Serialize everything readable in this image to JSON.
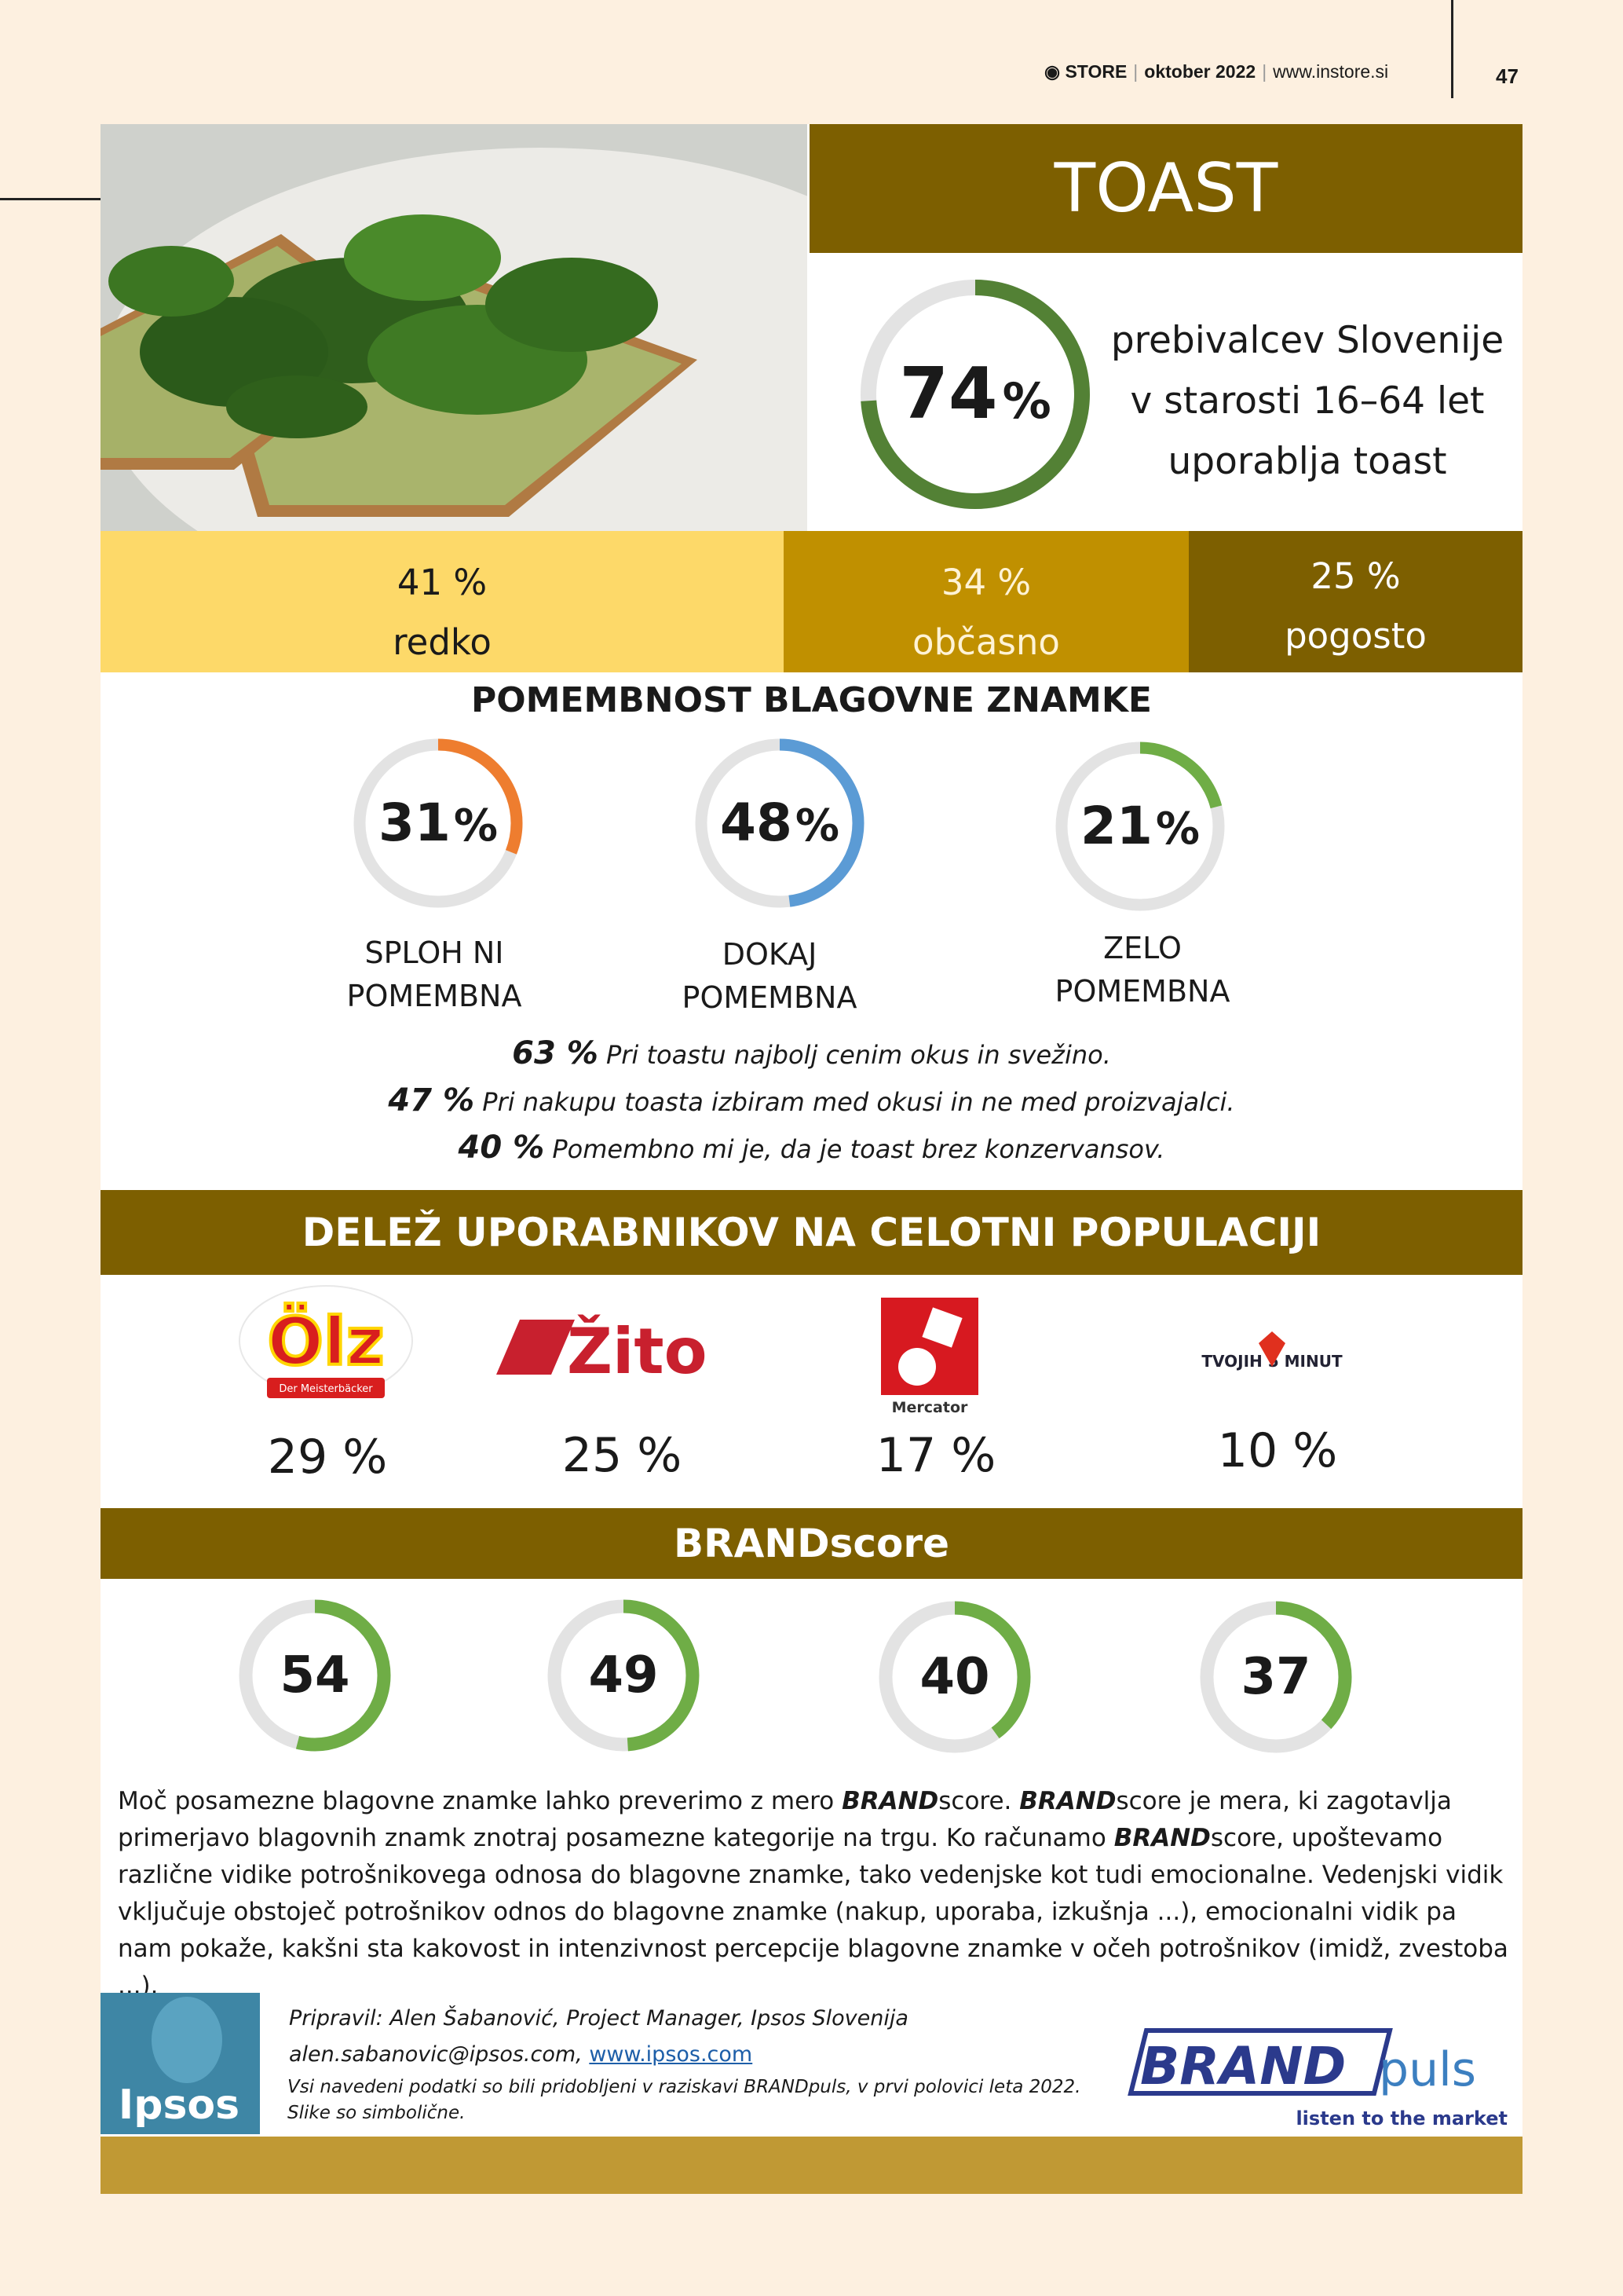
{
  "header": {
    "magazine": "STORE",
    "issue": "oktober 2022",
    "website": "www.instore.si",
    "page_number": "47"
  },
  "title": "TOAST",
  "usage": {
    "percent": "74",
    "unit": "%",
    "value": 74,
    "lines": [
      "prebivalcev Slovenije",
      "v starosti 16–64 let",
      "uporablja toast"
    ]
  },
  "frequency": [
    {
      "value": "41 %",
      "label": "redko"
    },
    {
      "value": "34 %",
      "label": "občasno"
    },
    {
      "value": "25 %",
      "label": "pogosto"
    }
  ],
  "importance": {
    "heading": "POMEMBNOST BLAGOVNE ZNAMKE",
    "items": [
      {
        "percent": "31",
        "unit": "%",
        "value": 31,
        "label_1": "SPLOH NI",
        "label_2": "POMEMBNA",
        "color": "#ee7d2f"
      },
      {
        "percent": "48",
        "unit": "%",
        "value": 48,
        "label_1": "DOKAJ",
        "label_2": "POMEMBNA",
        "color": "#5b9bd5"
      },
      {
        "percent": "21",
        "unit": "%",
        "value": 21,
        "label_1": "ZELO",
        "label_2": "POMEMBNA",
        "color": "#6fad46"
      }
    ]
  },
  "statements": [
    {
      "percent": "63 %",
      "text": "Pri toastu najbolj cenim okus in svežino."
    },
    {
      "percent": "47 %",
      "text": "Pri nakupu toasta izbiram med okusi in ne med proizvajalci."
    },
    {
      "percent": "40 %",
      "text": "Pomembno mi je, da je toast brez konzervansov."
    }
  ],
  "share": {
    "heading": "DELEŽ UPORABNIKOV NA CELOTNI POPULACIJI",
    "brands": [
      {
        "logo_text": "Ölz",
        "logo_sub": "Der Meisterbäcker",
        "value": "29 %"
      },
      {
        "logo_text": "Žito",
        "value": "25 %"
      },
      {
        "logo_text": "Mercator",
        "value": "17 %"
      },
      {
        "logo_text": "TVOJIH 5 MINUT",
        "value": "10 %"
      }
    ]
  },
  "brandscore": {
    "heading": "BRANDscore",
    "scores": [
      {
        "label": "54",
        "value": 54
      },
      {
        "label": "49",
        "value": 49
      },
      {
        "label": "40",
        "value": 40
      },
      {
        "label": "37",
        "value": 37
      }
    ],
    "ring_color": "#6fad46"
  },
  "description": {
    "p1": "Moč posamezne blagovne znamke lahko preverimo z mero ",
    "b1": "BRAND",
    "p2": "score. ",
    "b2": "BRAND",
    "p3": "score je mera, ki zagotavlja primerjavo blagovnih znamk znotraj posamezne kategorije na trgu. Ko računamo ",
    "b3": "BRAND",
    "p4": "score, upoštevamo različne vidike potrošnikovega odnosa do blagovne znamke, tako vedenjske kot tudi emocionalne. Vedenjski vidik vključuje obstoječ potrošnikov odnos do blagovne znamke (nakup, uporaba, izkušnja ...), emocionalni vidik pa nam pokaže, kakšni sta kakovost in intenzivnost percepcije blagovne znamke v očeh potrošnikov (imidž, zvestoba ...)."
  },
  "credits": {
    "prepared_by": "Pripravil: Alen Šabanović, Project Manager, Ipsos Slovenija",
    "email": "alen.sabanovic@ipsos.com,",
    "link": "www.ipsos.com",
    "note_1": "Vsi navedeni podatki so bili pridobljeni v raziskavi BRANDpuls, v prvi polovici leta 2022.",
    "note_2": "Slike so simbolične."
  },
  "logos": {
    "ipsos": "Ipsos",
    "brandpuls_1": "BRAND",
    "brandpuls_2": "puls",
    "brandpuls_tagline": "listen to the market"
  },
  "colors": {
    "dark_gold": "#7d5f00",
    "gold": "#c09000",
    "light_yellow": "#fdd969",
    "usage_green": "#538135",
    "ring_track": "#e3e3e3"
  }
}
